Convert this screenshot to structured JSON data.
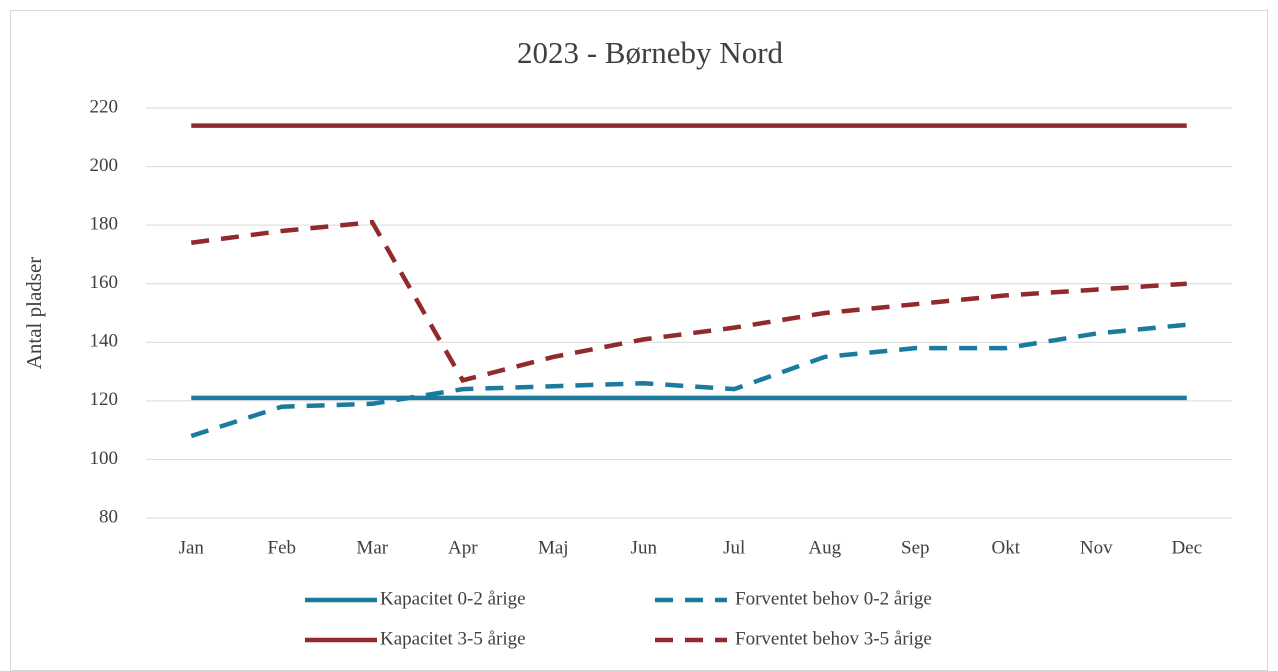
{
  "chart_data": {
    "type": "line",
    "title": "2023 - Børneby Nord",
    "y_label": "Antal pladser",
    "categories": [
      "Jan",
      "Feb",
      "Mar",
      "Apr",
      "Maj",
      "Jun",
      "Jul",
      "Aug",
      "Sep",
      "Okt",
      "Nov",
      "Dec"
    ],
    "series": [
      {
        "name": "Kapacitet 0-2 årige",
        "color": "#1b7b9e",
        "dashed": false,
        "values": [
          121,
          121,
          121,
          121,
          121,
          121,
          121,
          121,
          121,
          121,
          121,
          121
        ]
      },
      {
        "name": "Forventet behov 0-2 årige",
        "color": "#1b7b9e",
        "dashed": true,
        "values": [
          108,
          118,
          119,
          124,
          125,
          126,
          124,
          135,
          138,
          138,
          143,
          146
        ]
      },
      {
        "name": "Kapacitet 3-5 årige",
        "color": "#92292d",
        "dashed": false,
        "values": [
          214,
          214,
          214,
          214,
          214,
          214,
          214,
          214,
          214,
          214,
          214,
          214
        ]
      },
      {
        "name": "Forventet behov 3-5 årige",
        "color": "#92292d",
        "dashed": true,
        "values": [
          174,
          178,
          181,
          127,
          135,
          141,
          145,
          150,
          153,
          156,
          158,
          160
        ]
      }
    ],
    "ylim": [
      80,
      220
    ],
    "yticks": [
      80,
      100,
      120,
      140,
      160,
      180,
      200,
      220
    ],
    "grid": true,
    "legend": "bottom"
  }
}
